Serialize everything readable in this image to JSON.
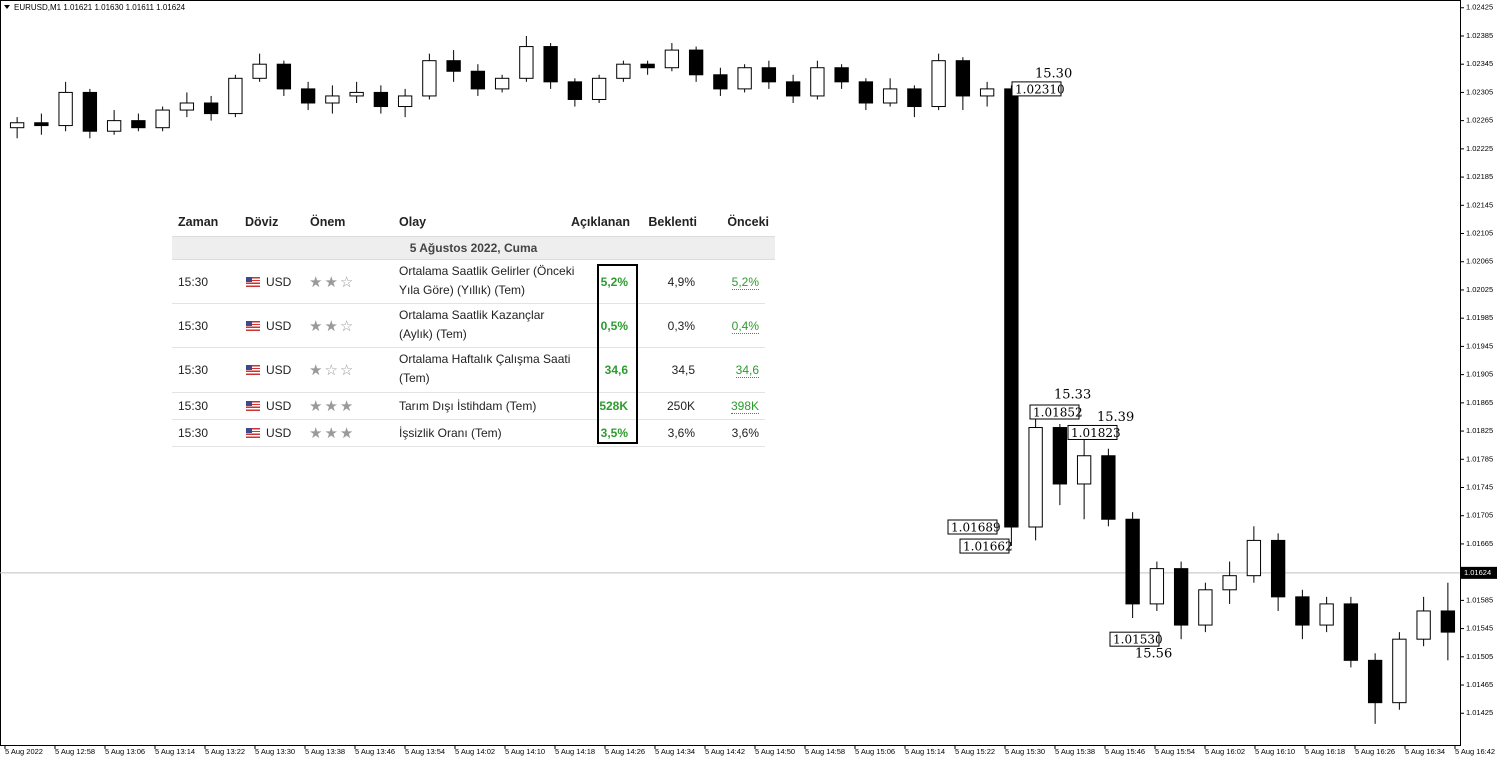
{
  "header": {
    "symbol_line": "EURUSD,M1  1.01621 1.01630 1.01611 1.01624"
  },
  "chart_data": {
    "type": "candlestick",
    "ohlc": [
      [
        1.02255,
        1.0227,
        1.0224,
        1.02262
      ],
      [
        1.02262,
        1.02275,
        1.02245,
        1.02258
      ],
      [
        1.02258,
        1.0232,
        1.0225,
        1.02305
      ],
      [
        1.02305,
        1.0231,
        1.0224,
        1.0225
      ],
      [
        1.0225,
        1.0228,
        1.02245,
        1.02265
      ],
      [
        1.02265,
        1.02275,
        1.0225,
        1.02255
      ],
      [
        1.02255,
        1.02285,
        1.0225,
        1.0228
      ],
      [
        1.0228,
        1.02305,
        1.0227,
        1.0229
      ],
      [
        1.0229,
        1.023,
        1.02265,
        1.02275
      ],
      [
        1.02275,
        1.0233,
        1.0227,
        1.02325
      ],
      [
        1.02325,
        1.0236,
        1.0232,
        1.02345
      ],
      [
        1.02345,
        1.0235,
        1.023,
        1.0231
      ],
      [
        1.0231,
        1.0232,
        1.0228,
        1.0229
      ],
      [
        1.0229,
        1.02315,
        1.02275,
        1.023
      ],
      [
        1.023,
        1.0232,
        1.0229,
        1.02305
      ],
      [
        1.02305,
        1.02315,
        1.02275,
        1.02285
      ],
      [
        1.02285,
        1.0231,
        1.0227,
        1.023
      ],
      [
        1.023,
        1.0236,
        1.02295,
        1.0235
      ],
      [
        1.0235,
        1.02365,
        1.0232,
        1.02335
      ],
      [
        1.02335,
        1.02345,
        1.023,
        1.0231
      ],
      [
        1.0231,
        1.0233,
        1.02305,
        1.02325
      ],
      [
        1.02325,
        1.02385,
        1.0232,
        1.0237
      ],
      [
        1.0237,
        1.02375,
        1.0231,
        1.0232
      ],
      [
        1.0232,
        1.02325,
        1.02285,
        1.02295
      ],
      [
        1.02295,
        1.0233,
        1.0229,
        1.02325
      ],
      [
        1.02325,
        1.0235,
        1.0232,
        1.02345
      ],
      [
        1.02345,
        1.0235,
        1.0233,
        1.0234
      ],
      [
        1.0234,
        1.02375,
        1.02335,
        1.02365
      ],
      [
        1.02365,
        1.0237,
        1.0232,
        1.0233
      ],
      [
        1.0233,
        1.0234,
        1.023,
        1.0231
      ],
      [
        1.0231,
        1.02345,
        1.02305,
        1.0234
      ],
      [
        1.0234,
        1.0235,
        1.0231,
        1.0232
      ],
      [
        1.0232,
        1.0233,
        1.0229,
        1.023
      ],
      [
        1.023,
        1.0235,
        1.02295,
        1.0234
      ],
      [
        1.0234,
        1.02345,
        1.0231,
        1.0232
      ],
      [
        1.0232,
        1.02325,
        1.0228,
        1.0229
      ],
      [
        1.0229,
        1.02325,
        1.02285,
        1.0231
      ],
      [
        1.0231,
        1.02315,
        1.0227,
        1.02285
      ],
      [
        1.02285,
        1.0236,
        1.0228,
        1.0235
      ],
      [
        1.0235,
        1.02355,
        1.0228,
        1.023
      ],
      [
        1.023,
        1.0232,
        1.02285,
        1.0231
      ],
      [
        1.0231,
        1.02315,
        1.01662,
        1.01689
      ],
      [
        1.01689,
        1.01852,
        1.0167,
        1.0183
      ],
      [
        1.0183,
        1.01835,
        1.0172,
        1.0175
      ],
      [
        1.0175,
        1.01823,
        1.017,
        1.0179
      ],
      [
        1.0179,
        1.018,
        1.0169,
        1.017
      ],
      [
        1.017,
        1.0171,
        1.0156,
        1.0158
      ],
      [
        1.0158,
        1.0164,
        1.0157,
        1.0163
      ],
      [
        1.0163,
        1.0164,
        1.0153,
        1.0155
      ],
      [
        1.0155,
        1.0161,
        1.0154,
        1.016
      ],
      [
        1.016,
        1.0164,
        1.0158,
        1.0162
      ],
      [
        1.0162,
        1.0169,
        1.0161,
        1.0167
      ],
      [
        1.0167,
        1.0168,
        1.0157,
        1.0159
      ],
      [
        1.0159,
        1.016,
        1.0153,
        1.0155
      ],
      [
        1.0155,
        1.0159,
        1.0154,
        1.0158
      ],
      [
        1.0158,
        1.0159,
        1.0149,
        1.015
      ],
      [
        1.015,
        1.0151,
        1.0141,
        1.0144
      ],
      [
        1.0144,
        1.0154,
        1.0143,
        1.0153
      ],
      [
        1.0153,
        1.0159,
        1.0152,
        1.0157
      ],
      [
        1.0157,
        1.0161,
        1.015,
        1.0154
      ]
    ],
    "up_color": "#ffffff",
    "down_color": "#000000",
    "ylim": [
      1.0138,
      1.02436
    ],
    "yticks": [
      1.02425,
      1.02385,
      1.02345,
      1.02305,
      1.02265,
      1.02225,
      1.02185,
      1.02145,
      1.02105,
      1.02065,
      1.02025,
      1.01985,
      1.01945,
      1.01905,
      1.01865,
      1.01825,
      1.01785,
      1.01745,
      1.01705,
      1.01665,
      1.01625,
      1.01585,
      1.01545,
      1.01505,
      1.01465,
      1.01425
    ],
    "xticks": [
      "5 Aug 2022",
      "5 Aug 12:58",
      "5 Aug 13:06",
      "5 Aug 13:14",
      "5 Aug 13:22",
      "5 Aug 13:30",
      "5 Aug 13:38",
      "5 Aug 13:46",
      "5 Aug 13:54",
      "5 Aug 14:02",
      "5 Aug 14:10",
      "5 Aug 14:18",
      "5 Aug 14:26",
      "5 Aug 14:34",
      "5 Aug 14:42",
      "5 Aug 14:50",
      "5 Aug 14:58",
      "5 Aug 15:06",
      "5 Aug 15:14",
      "5 Aug 15:22",
      "5 Aug 15:30",
      "5 Aug 15:38",
      "5 Aug 15:46",
      "5 Aug 15:54",
      "5 Aug 16:02",
      "5 Aug 16:10",
      "5 Aug 16:18",
      "5 Aug 16:26",
      "5 Aug 16:34",
      "5 Aug 16:42"
    ],
    "last_price": 1.01624,
    "annotations": [
      {
        "time": "15.30",
        "price": {
          "value": 1.0231,
          "label": "1.02310"
        }
      },
      {
        "time": "15.33",
        "price": {
          "value": 1.01852,
          "label": "1.01852"
        }
      },
      {
        "time": "15.39",
        "price": {
          "value": 1.01823,
          "label": "1.01823"
        }
      },
      {
        "price": {
          "value": 1.01689,
          "label": "1.01689"
        }
      },
      {
        "price": {
          "value": 1.01662,
          "label": "1.01662"
        }
      },
      {
        "time": "15.56",
        "price": {
          "value": 1.0153,
          "label": "1.01530"
        }
      }
    ]
  },
  "table": {
    "columns": [
      "Zaman",
      "Döviz",
      "Önem",
      "Olay",
      "Açıklanan",
      "Beklenti",
      "Önceki"
    ],
    "date": "5 Ağustos 2022, Cuma",
    "rows": [
      {
        "time": "15:30",
        "currency": "USD",
        "importance": 2,
        "event": "Ortalama Saatlik Gelirler (Önceki Yıla Göre) (Yıllık) (Tem)",
        "actual": "5,2%",
        "forecast": "4,9%",
        "previous": "5,2%"
      },
      {
        "time": "15:30",
        "currency": "USD",
        "importance": 2,
        "event": "Ortalama Saatlik Kazançlar (Aylık) (Tem)",
        "actual": "0,5%",
        "forecast": "0,3%",
        "previous": "0,4%"
      },
      {
        "time": "15:30",
        "currency": "USD",
        "importance": 1,
        "event": "Ortalama Haftalık Çalışma Saati (Tem)",
        "actual": "34,6",
        "forecast": "34,5",
        "previous": "34,6"
      },
      {
        "time": "15:30",
        "currency": "USD",
        "importance": 3,
        "event": "Tarım Dışı İstihdam (Tem)",
        "actual": "528K",
        "forecast": "250K",
        "previous": "398K"
      },
      {
        "time": "15:30",
        "currency": "USD",
        "importance": 3,
        "event": "İşsizlik Oranı (Tem)",
        "actual": "3,5%",
        "forecast": "3,6%",
        "previous": "3,6%"
      }
    ]
  }
}
